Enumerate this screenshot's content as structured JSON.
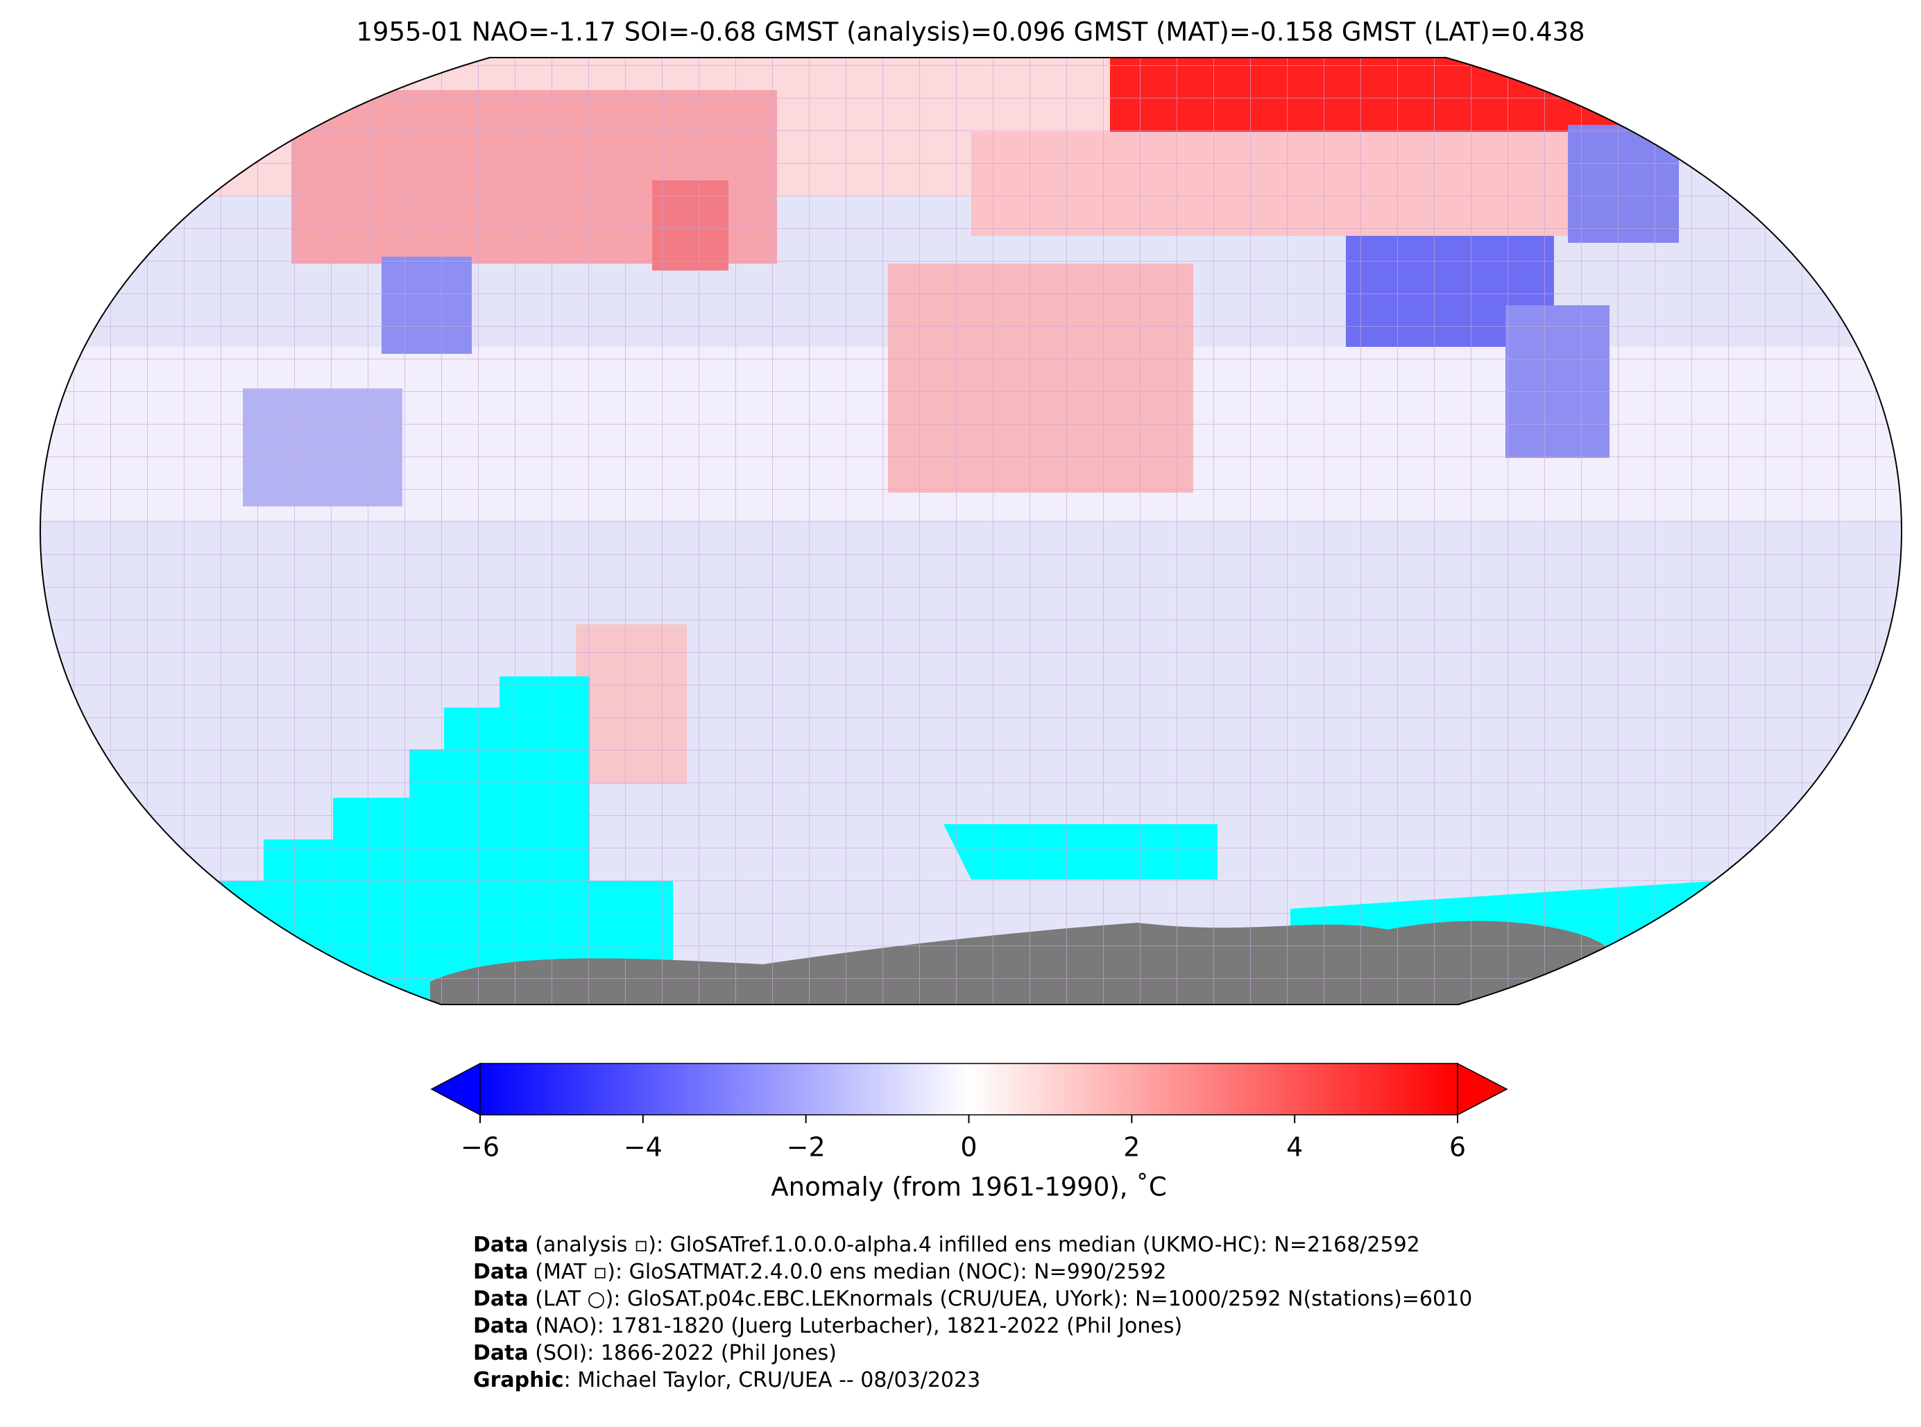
{
  "chart_data": {
    "type": "map",
    "title": "1955-01 NAO=-1.17 SOI=-0.68 GMST (analysis)=0.096 GMST (MAT)=-0.158 GMST (LAT)=0.438",
    "colorbar": {
      "label": "Anomaly (from 1961-1990), ˚C",
      "clim": [
        -6,
        6
      ],
      "cmap": [
        "#0000ff",
        "#ffffff",
        "#ff0000"
      ],
      "ticks": [
        {
          "value": -6,
          "label": "−6"
        },
        {
          "value": -4,
          "label": "−4"
        },
        {
          "value": -2,
          "label": "−2"
        },
        0,
        2,
        4,
        6
      ]
    },
    "footer": {
      "lines": [
        {
          "bold": "Data",
          "text": " (analysis ▫): GloSATref.1.0.0.0-alpha.4 infilled ens median (UKMO-HC): N=2168/2592"
        },
        {
          "bold": "Data",
          "text": " (MAT ▫): GloSATMAT.2.4.0.0 ens median (NOC): N=990/2592"
        },
        {
          "bold": "Data",
          "text": " (LAT ○): GloSAT.p04c.EBC.LEKnormals (CRU/UEA, UYork): N=1000/2592 N(stations)=6010"
        },
        {
          "bold": "Data",
          "text": " (NAO): 1781-1820 (Juerg Luterbacher), 1821-2022 (Phil Jones)"
        },
        {
          "bold": "Data",
          "text": " (SOI): 1866-2022 (Phil Jones)"
        },
        {
          "bold": "Graphic",
          "text": ": Michael Taylor, CRU/UEA -- 08/03/2023"
        }
      ]
    }
  }
}
